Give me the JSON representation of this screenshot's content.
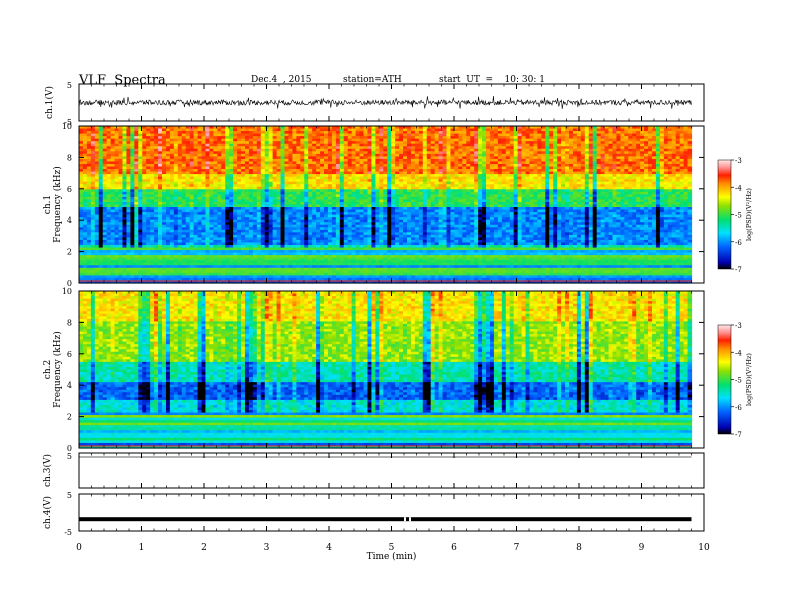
{
  "header": {
    "title": "VLF  Spectra",
    "date": "Dec.4  , 2015",
    "station": "station=ATH",
    "start": "start  UT  =    10: 30: 1"
  },
  "chart_data": [
    {
      "type": "line",
      "name": "ch1-waveform",
      "ylabel": "ch.1(V)",
      "ylim": [
        -5,
        5
      ],
      "yticks": [
        "5",
        "-5"
      ],
      "description_level": "noisy signal around 0 with spikes to about ±2.5 V",
      "xlim": [
        0,
        10
      ],
      "data_end": 9.8
    },
    {
      "type": "heatmap",
      "name": "ch1-spectrogram",
      "ylabel_line1": "ch.1",
      "ylabel_line2": "Frequency  (kHz)",
      "ylim": [
        0,
        10
      ],
      "yticks": [
        "0",
        "2",
        "4",
        "6",
        "8",
        "10"
      ],
      "xlim": [
        0,
        10
      ],
      "data_end": 9.8,
      "colorbar": {
        "label": "log(PSD)(V²/Hz)",
        "range": [
          -7,
          -3
        ],
        "ticks": [
          "-3",
          "-4",
          "-5",
          "-6",
          "-7"
        ]
      }
    },
    {
      "type": "heatmap",
      "name": "ch2-spectrogram",
      "ylabel_line1": "ch.2",
      "ylabel_line2": "Frequency  (kHz)",
      "ylim": [
        0,
        10
      ],
      "yticks": [
        "0",
        "2",
        "4",
        "6",
        "8",
        "10"
      ],
      "xlim": [
        0,
        10
      ],
      "data_end": 9.8,
      "colorbar": {
        "label": "log(PSD)(V²/Hz)",
        "range": [
          -7,
          -3
        ],
        "ticks": [
          "-3",
          "-4",
          "-5",
          "-6",
          "-7"
        ]
      }
    },
    {
      "type": "line",
      "name": "ch3-waveform",
      "ylabel": "ch.3(V)",
      "ylim": [
        -5,
        5
      ],
      "yticks": [
        "5"
      ],
      "xlim": [
        0,
        10
      ],
      "data_end": 9.8
    },
    {
      "type": "line",
      "name": "ch4-waveform",
      "ylabel": "ch.4(V)",
      "ylim": [
        -5,
        5
      ],
      "yticks": [
        "5",
        "-5"
      ],
      "level": -1.8,
      "xlim": [
        0,
        10
      ],
      "data_end": 9.8
    }
  ],
  "x_axis": {
    "label": "Time  (min)",
    "ticks": [
      "0",
      "1",
      "2",
      "3",
      "4",
      "5",
      "6",
      "7",
      "8",
      "9",
      "10"
    ]
  }
}
